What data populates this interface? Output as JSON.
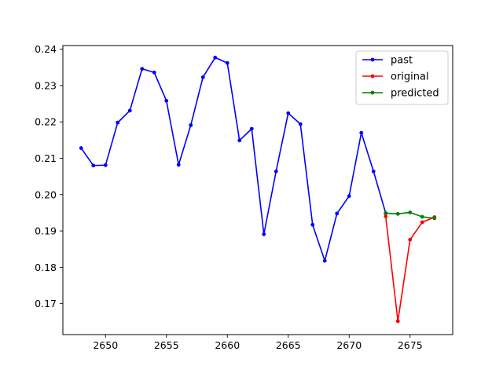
{
  "chart_data": {
    "type": "line",
    "title": "",
    "xlabel": "",
    "ylabel": "",
    "xlim": [
      2646.5,
      2678.5
    ],
    "ylim": [
      0.1615,
      0.241
    ],
    "xticks": [
      2650,
      2655,
      2660,
      2665,
      2670,
      2675
    ],
    "yticks": [
      0.17,
      0.18,
      0.19,
      0.2,
      0.21,
      0.22,
      0.23,
      0.24
    ],
    "grid": false,
    "legend_position": "top-right",
    "series": [
      {
        "name": "past",
        "color": "#0000ff",
        "marker": "point",
        "x": [
          2648,
          2649,
          2650,
          2651,
          2652,
          2653,
          2654,
          2655,
          2656,
          2657,
          2658,
          2659,
          2660,
          2661,
          2662,
          2663,
          2664,
          2665,
          2666,
          2667,
          2668,
          2669,
          2670,
          2671,
          2672,
          2673
        ],
        "y": [
          0.2128,
          0.208,
          0.2081,
          0.2198,
          0.2231,
          0.2346,
          0.2336,
          0.2258,
          0.2082,
          0.2191,
          0.2323,
          0.2377,
          0.2362,
          0.2149,
          0.2181,
          0.1891,
          0.2064,
          0.2224,
          0.2194,
          0.1917,
          0.1818,
          0.1948,
          0.1996,
          0.217,
          0.2064,
          0.1949
        ]
      },
      {
        "name": "original",
        "color": "#ff0000",
        "marker": "point",
        "x": [
          2673,
          2674,
          2675,
          2676,
          2677
        ],
        "y": [
          0.194,
          0.1652,
          0.1876,
          0.1924,
          0.1938
        ]
      },
      {
        "name": "predicted",
        "color": "#008000",
        "marker": "point",
        "x": [
          2673,
          2674,
          2675,
          2676,
          2677
        ],
        "y": [
          0.1949,
          0.1947,
          0.1951,
          0.1939,
          0.1935
        ]
      }
    ]
  }
}
